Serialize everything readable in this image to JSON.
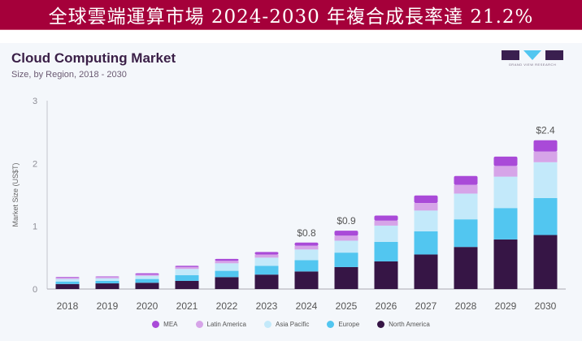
{
  "banner": {
    "text": "全球雲端運算市場 2024-2030 年複合成長率達 21.2%"
  },
  "logo": {
    "text": "GRAND VIEW RESEARCH",
    "colors": {
      "box": "#3a1f4f",
      "triangle": "#52c6f0"
    }
  },
  "chart_data": {
    "type": "bar",
    "stacked": true,
    "title": "Cloud Computing Market",
    "subtitle": "Size, by Region, 2018 - 2030",
    "xlabel": "",
    "ylabel": "Market Size (US$T)",
    "ylim": [
      0,
      3
    ],
    "yticks": [
      "0",
      "1",
      "2",
      "3"
    ],
    "grid": false,
    "legend_position": "bottom",
    "categories": [
      "2018",
      "2019",
      "2020",
      "2021",
      "2022",
      "2023",
      "2024",
      "2025",
      "2026",
      "2027",
      "2028",
      "2029",
      "2030"
    ],
    "series": [
      {
        "name": "North America",
        "color": "#361545",
        "values": [
          0.08,
          0.09,
          0.1,
          0.13,
          0.19,
          0.23,
          0.28,
          0.35,
          0.44,
          0.55,
          0.67,
          0.79,
          0.86
        ]
      },
      {
        "name": "Europe",
        "color": "#52c6f0",
        "values": [
          0.04,
          0.04,
          0.06,
          0.09,
          0.1,
          0.14,
          0.18,
          0.23,
          0.31,
          0.37,
          0.44,
          0.5,
          0.59
        ]
      },
      {
        "name": "Asia Pacific",
        "color": "#c3e9fa",
        "values": [
          0.04,
          0.04,
          0.05,
          0.1,
          0.12,
          0.13,
          0.17,
          0.19,
          0.26,
          0.33,
          0.41,
          0.5,
          0.57
        ]
      },
      {
        "name": "Latin America",
        "color": "#d6a4e8",
        "values": [
          0.02,
          0.02,
          0.02,
          0.03,
          0.04,
          0.05,
          0.06,
          0.08,
          0.08,
          0.12,
          0.14,
          0.17,
          0.17
        ]
      },
      {
        "name": "MEA",
        "color": "#a94ad8",
        "values": [
          0.01,
          0.01,
          0.02,
          0.02,
          0.03,
          0.04,
          0.05,
          0.08,
          0.08,
          0.12,
          0.14,
          0.15,
          0.18
        ]
      }
    ],
    "legend_order": [
      "MEA",
      "Latin America",
      "Asia Pacific",
      "Europe",
      "North America"
    ],
    "annotations": [
      {
        "category": "2024",
        "text": "$0.8"
      },
      {
        "category": "2025",
        "text": "$0.9"
      },
      {
        "category": "2030",
        "text": "$2.4"
      }
    ]
  }
}
